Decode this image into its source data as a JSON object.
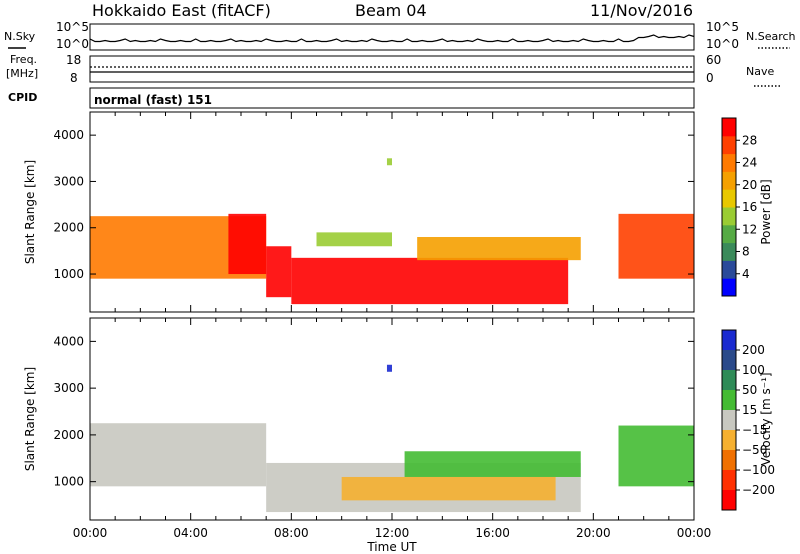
{
  "header": {
    "title": "Hokkaido East (fitACF)",
    "beam": "Beam 04",
    "date": "11/Nov/2016"
  },
  "top_panels": {
    "nsky_label": "N.Sky",
    "nsearch_label": "N.Search",
    "freq_label_1": "Freq.",
    "freq_label_2": "[MHz]",
    "nave_label": "Nave",
    "cpid_label": "CPID",
    "cpid_value": "normal (fast) 151",
    "noise_left_ticks": [
      "10^5",
      "10^0"
    ],
    "noise_right_ticks": [
      "10^5",
      "10^0"
    ],
    "freq_left_ticks": [
      "18",
      "8"
    ],
    "freq_right_ticks": [
      "60",
      "0"
    ]
  },
  "axes": {
    "ylabel": "Slant Range [km]",
    "xlabel": "Time UT",
    "x_ticks": [
      "00:00",
      "04:00",
      "08:00",
      "12:00",
      "16:00",
      "20:00",
      "00:00"
    ],
    "y_ticks": [
      "1000",
      "2000",
      "3000",
      "4000"
    ]
  },
  "colorbars": {
    "power": {
      "label": "Power [dB]",
      "ticks": [
        "4",
        "8",
        "12",
        "16",
        "20",
        "24",
        "28"
      ],
      "colors": [
        "#0000ff",
        "#2a4a9a",
        "#3a8a5a",
        "#55aa44",
        "#9acc33",
        "#e8c800",
        "#f5a000",
        "#ff7a00",
        "#ff4000",
        "#ff0000"
      ]
    },
    "velocity": {
      "label": "Velocity [m s⁻¹]",
      "ticks": [
        "200",
        "100",
        "50",
        "15",
        "−15",
        "−50",
        "−100",
        "−200"
      ],
      "colors": [
        "#1a2ad0",
        "#2a4a8a",
        "#2e8b57",
        "#44bb33",
        "#c8c8c0",
        "#f5b030",
        "#f07000",
        "#ff3000",
        "#ff0000"
      ]
    }
  },
  "chart_data": [
    {
      "type": "heatmap",
      "name_printed": "Power [dB]",
      "x_unit": "hours UT",
      "xlim": [
        0,
        24
      ],
      "ylim": [
        180,
        4500
      ],
      "bands": [
        {
          "t0": 0.0,
          "t1": 7.0,
          "r0": 900,
          "r1": 2250,
          "value": 22
        },
        {
          "t0": 5.5,
          "t1": 7.0,
          "r0": 1000,
          "r1": 2300,
          "value": 28
        },
        {
          "t0": 7.0,
          "t1": 8.0,
          "r0": 500,
          "r1": 1600,
          "value": 28
        },
        {
          "t0": 8.0,
          "t1": 19.0,
          "r0": 350,
          "r1": 1350,
          "value": 29
        },
        {
          "t0": 13.0,
          "t1": 19.5,
          "r0": 1300,
          "r1": 1800,
          "value": 18
        },
        {
          "t0": 9.0,
          "t1": 12.0,
          "r0": 1600,
          "r1": 1900,
          "value": 13
        },
        {
          "t0": 21.0,
          "t1": 24.0,
          "r0": 900,
          "r1": 2300,
          "value": 24
        },
        {
          "t0": 11.8,
          "t1": 12.0,
          "r0": 3350,
          "r1": 3500,
          "value": 12
        }
      ]
    },
    {
      "type": "heatmap",
      "name_printed": "Velocity [m s⁻¹]",
      "x_unit": "hours UT",
      "xlim": [
        0,
        24
      ],
      "ylim": [
        180,
        4500
      ],
      "bands": [
        {
          "t0": 0.0,
          "t1": 7.0,
          "r0": 900,
          "r1": 2250,
          "value": 0
        },
        {
          "t0": 7.0,
          "t1": 19.5,
          "r0": 350,
          "r1": 1400,
          "value": 0
        },
        {
          "t0": 12.5,
          "t1": 19.5,
          "r0": 1100,
          "r1": 1650,
          "value": 30
        },
        {
          "t0": 10.0,
          "t1": 18.5,
          "r0": 600,
          "r1": 1100,
          "value": -30
        },
        {
          "t0": 21.0,
          "t1": 24.0,
          "r0": 900,
          "r1": 2200,
          "value": 20
        },
        {
          "t0": 11.8,
          "t1": 12.0,
          "r0": 3350,
          "r1": 3500,
          "value": 200
        }
      ]
    }
  ]
}
